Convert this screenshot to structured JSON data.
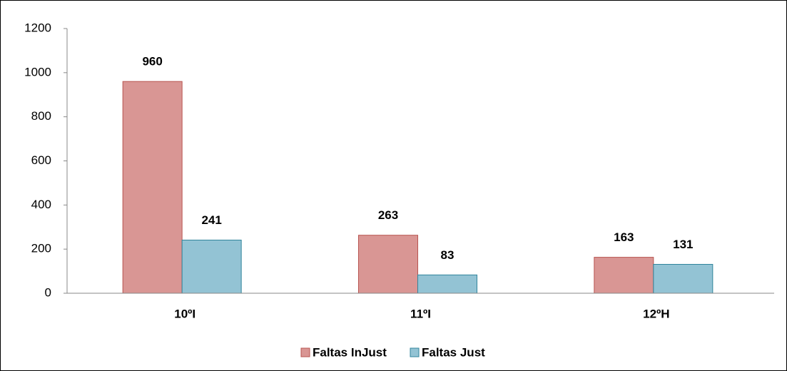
{
  "chart_data": {
    "type": "bar",
    "categories": [
      "10ºI",
      "11ºI",
      "12ºH"
    ],
    "series": [
      {
        "name": "Faltas InJust",
        "color": "#d99694",
        "values": [
          960,
          263,
          163
        ]
      },
      {
        "name": "Faltas Just",
        "color": "#93c3d4",
        "values": [
          241,
          83,
          131
        ]
      }
    ],
    "ylim": [
      0,
      1200
    ],
    "yticks": [
      0,
      200,
      400,
      600,
      800,
      1000,
      1200
    ],
    "grid": false,
    "legend": "bottom"
  }
}
